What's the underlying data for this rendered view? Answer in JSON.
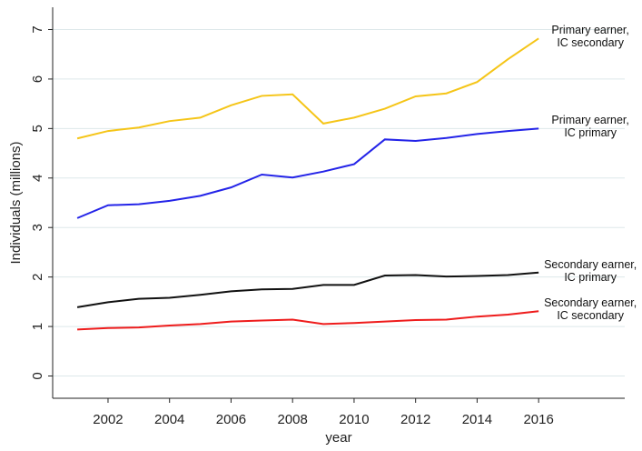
{
  "chart_data": {
    "type": "line",
    "x_label": "year",
    "y_label": "Individuals (millions)",
    "x": [
      2001,
      2002,
      2003,
      2004,
      2005,
      2006,
      2007,
      2008,
      2009,
      2010,
      2011,
      2012,
      2013,
      2014,
      2015,
      2016
    ],
    "xlim": [
      2000.2,
      2018.8
    ],
    "xticks": [
      2002,
      2004,
      2006,
      2008,
      2010,
      2012,
      2014,
      2016
    ],
    "ylim": [
      -0.45,
      7.45
    ],
    "yticks": [
      0,
      1,
      2,
      3,
      4,
      5,
      6,
      7
    ],
    "grid": true,
    "series": [
      {
        "name": "Primary earner,\nIC secondary",
        "color": "#f5c518",
        "values": [
          4.8,
          4.95,
          5.02,
          5.15,
          5.22,
          5.47,
          5.66,
          5.69,
          5.1,
          5.22,
          5.4,
          5.65,
          5.71,
          5.94,
          6.4,
          6.82
        ]
      },
      {
        "name": "Primary earner,\nIC primary",
        "color": "#2424e8",
        "values": [
          3.19,
          3.45,
          3.47,
          3.54,
          3.64,
          3.81,
          4.07,
          4.01,
          4.13,
          4.28,
          4.78,
          4.75,
          4.81,
          4.89,
          4.95,
          5.0
        ]
      },
      {
        "name": "Secondary earner,\nIC primary",
        "color": "#111111",
        "values": [
          1.39,
          1.49,
          1.56,
          1.58,
          1.64,
          1.71,
          1.75,
          1.76,
          1.84,
          1.84,
          2.03,
          2.04,
          2.01,
          2.02,
          2.04,
          2.09
        ]
      },
      {
        "name": "Secondary earner,\nIC secondary",
        "color": "#ee1c1c",
        "values": [
          0.94,
          0.97,
          0.98,
          1.02,
          1.05,
          1.1,
          1.12,
          1.14,
          1.05,
          1.07,
          1.1,
          1.13,
          1.14,
          1.2,
          1.24,
          1.31
        ]
      }
    ]
  }
}
